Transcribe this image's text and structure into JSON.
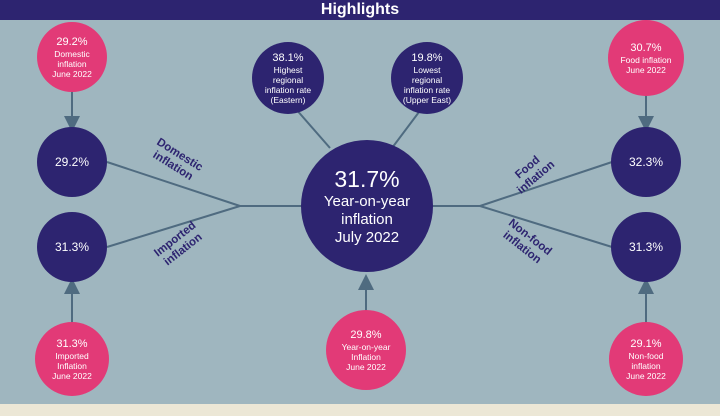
{
  "header": {
    "title": "Highlights"
  },
  "center": {
    "value": "31.7%",
    "caption_1": "Year-on-year",
    "caption_2": "inflation",
    "caption_3": "July 2022"
  },
  "left": {
    "domestic_june": {
      "value": "29.2%",
      "caption_1": "Domestic",
      "caption_2": "inflation",
      "caption_3": "June 2022"
    },
    "domestic_july": {
      "value": "29.2%"
    },
    "domestic_label_1": "Domestic",
    "domestic_label_2": "inflation",
    "imported_july": {
      "value": "31.3%"
    },
    "imported_june": {
      "value": "31.3%",
      "caption_1": "Imported",
      "caption_2": "Inflation",
      "caption_3": "June 2022"
    },
    "imported_label_1": "Imported",
    "imported_label_2": "inflation"
  },
  "top": {
    "highest": {
      "value": "38.1%",
      "caption_1": "Highest",
      "caption_2": "regional",
      "caption_3": "inflation rate",
      "caption_4": "(Eastern)"
    },
    "lowest": {
      "value": "19.8%",
      "caption_1": "Lowest",
      "caption_2": "regional",
      "caption_3": "inflation rate",
      "caption_4": "(Upper East)"
    }
  },
  "bottom": {
    "yoy_june": {
      "value": "29.8%",
      "caption_1": "Year-on-year",
      "caption_2": "Inflation",
      "caption_3": "June 2022"
    }
  },
  "right": {
    "food_june": {
      "value": "30.7%",
      "caption_1": "Food inflation",
      "caption_2": "June 2022"
    },
    "food_july": {
      "value": "32.3%"
    },
    "food_label_1": "Food",
    "food_label_2": "inflation",
    "nonfood_july": {
      "value": "31.3%"
    },
    "nonfood_june": {
      "value": "29.1%",
      "caption_1": "Non-food",
      "caption_2": "inflation",
      "caption_3": "June 2022"
    },
    "nonfood_label_1": "Non-food",
    "nonfood_label_2": "inflation"
  },
  "colors": {
    "dark": "#2d2470",
    "pink": "#e23a77",
    "background": "#9fb6bf",
    "line": "#4f6b80"
  }
}
